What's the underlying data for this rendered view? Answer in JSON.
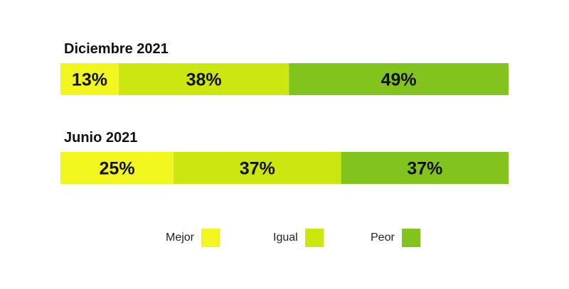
{
  "chart_data": {
    "type": "bar",
    "orientation": "horizontal",
    "stacked": true,
    "categories": [
      "Diciembre 2021",
      "Junio 2021"
    ],
    "series": [
      {
        "name": "Mejor",
        "values": [
          13,
          25
        ],
        "color": "#F1F71E"
      },
      {
        "name": "Igual",
        "values": [
          38,
          37
        ],
        "color": "#CCE60F"
      },
      {
        "name": "Peor",
        "values": [
          49,
          37
        ],
        "color": "#82C31E"
      }
    ],
    "value_suffix": "%",
    "legend_position": "bottom",
    "grid": false
  },
  "rows": [
    {
      "title": "Diciembre 2021",
      "labels": [
        "13%",
        "38%",
        "49%"
      ]
    },
    {
      "title": "Junio 2021",
      "labels": [
        "25%",
        "37%",
        "37%"
      ]
    }
  ],
  "legend": [
    {
      "label": "Mejor",
      "color": "#F1F71E"
    },
    {
      "label": "Igual",
      "color": "#CCE60F"
    },
    {
      "label": "Peor",
      "color": "#82C31E"
    }
  ]
}
